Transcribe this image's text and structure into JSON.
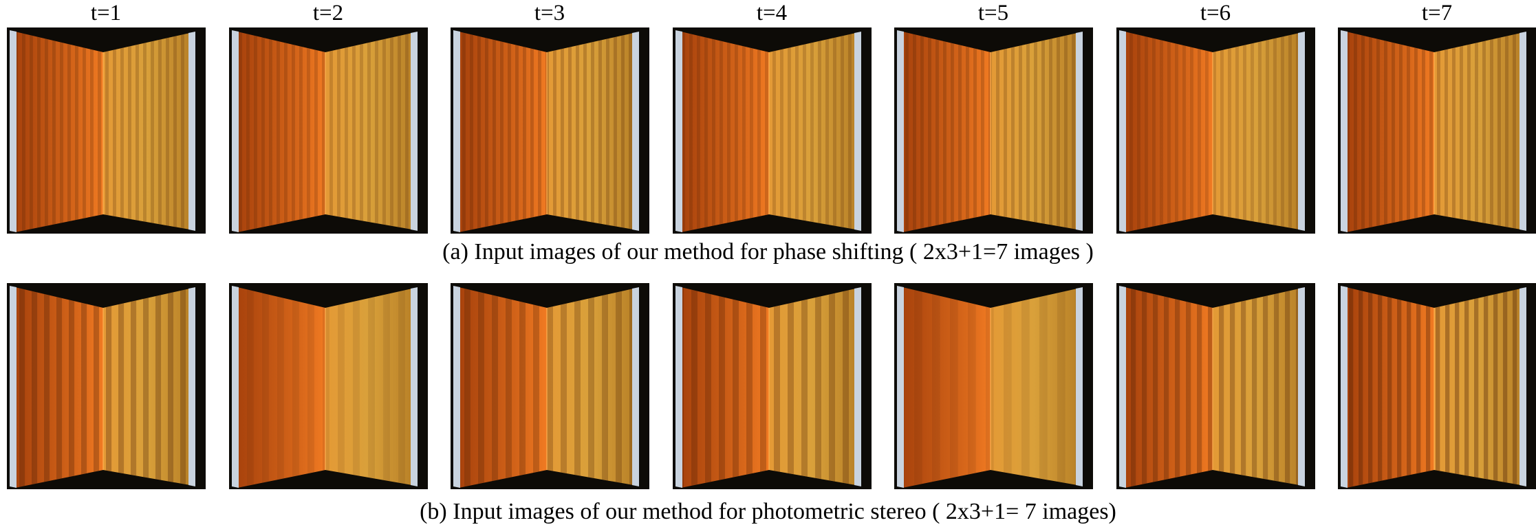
{
  "column_labels": [
    "t=1",
    "t=2",
    "t=3",
    "t=4",
    "t=5",
    "t=6",
    "t=7"
  ],
  "rows": [
    {
      "caption": "(a) Input images of our method for phase shifting ( 2x3+1=7 images )",
      "panel_names": [
        "phase-shift-image-1",
        "phase-shift-image-2",
        "phase-shift-image-3",
        "phase-shift-image-4",
        "phase-shift-image-5",
        "phase-shift-image-6",
        "phase-shift-image-7"
      ]
    },
    {
      "caption": "(b) Input images of our method for photometric stereo ( 2x3+1= 7 images)",
      "panel_names": [
        "photometric-stereo-image-1",
        "photometric-stereo-image-2",
        "photometric-stereo-image-3",
        "photometric-stereo-image-4",
        "photometric-stereo-image-5",
        "photometric-stereo-image-6",
        "photometric-stereo-image-7"
      ]
    }
  ],
  "colors": {
    "background": "#0d0b07",
    "left_wall": "#d6661a",
    "right_wall": "#d9a03a",
    "frame_edge": "#c9d3df",
    "stripe": "#4a1e05"
  }
}
